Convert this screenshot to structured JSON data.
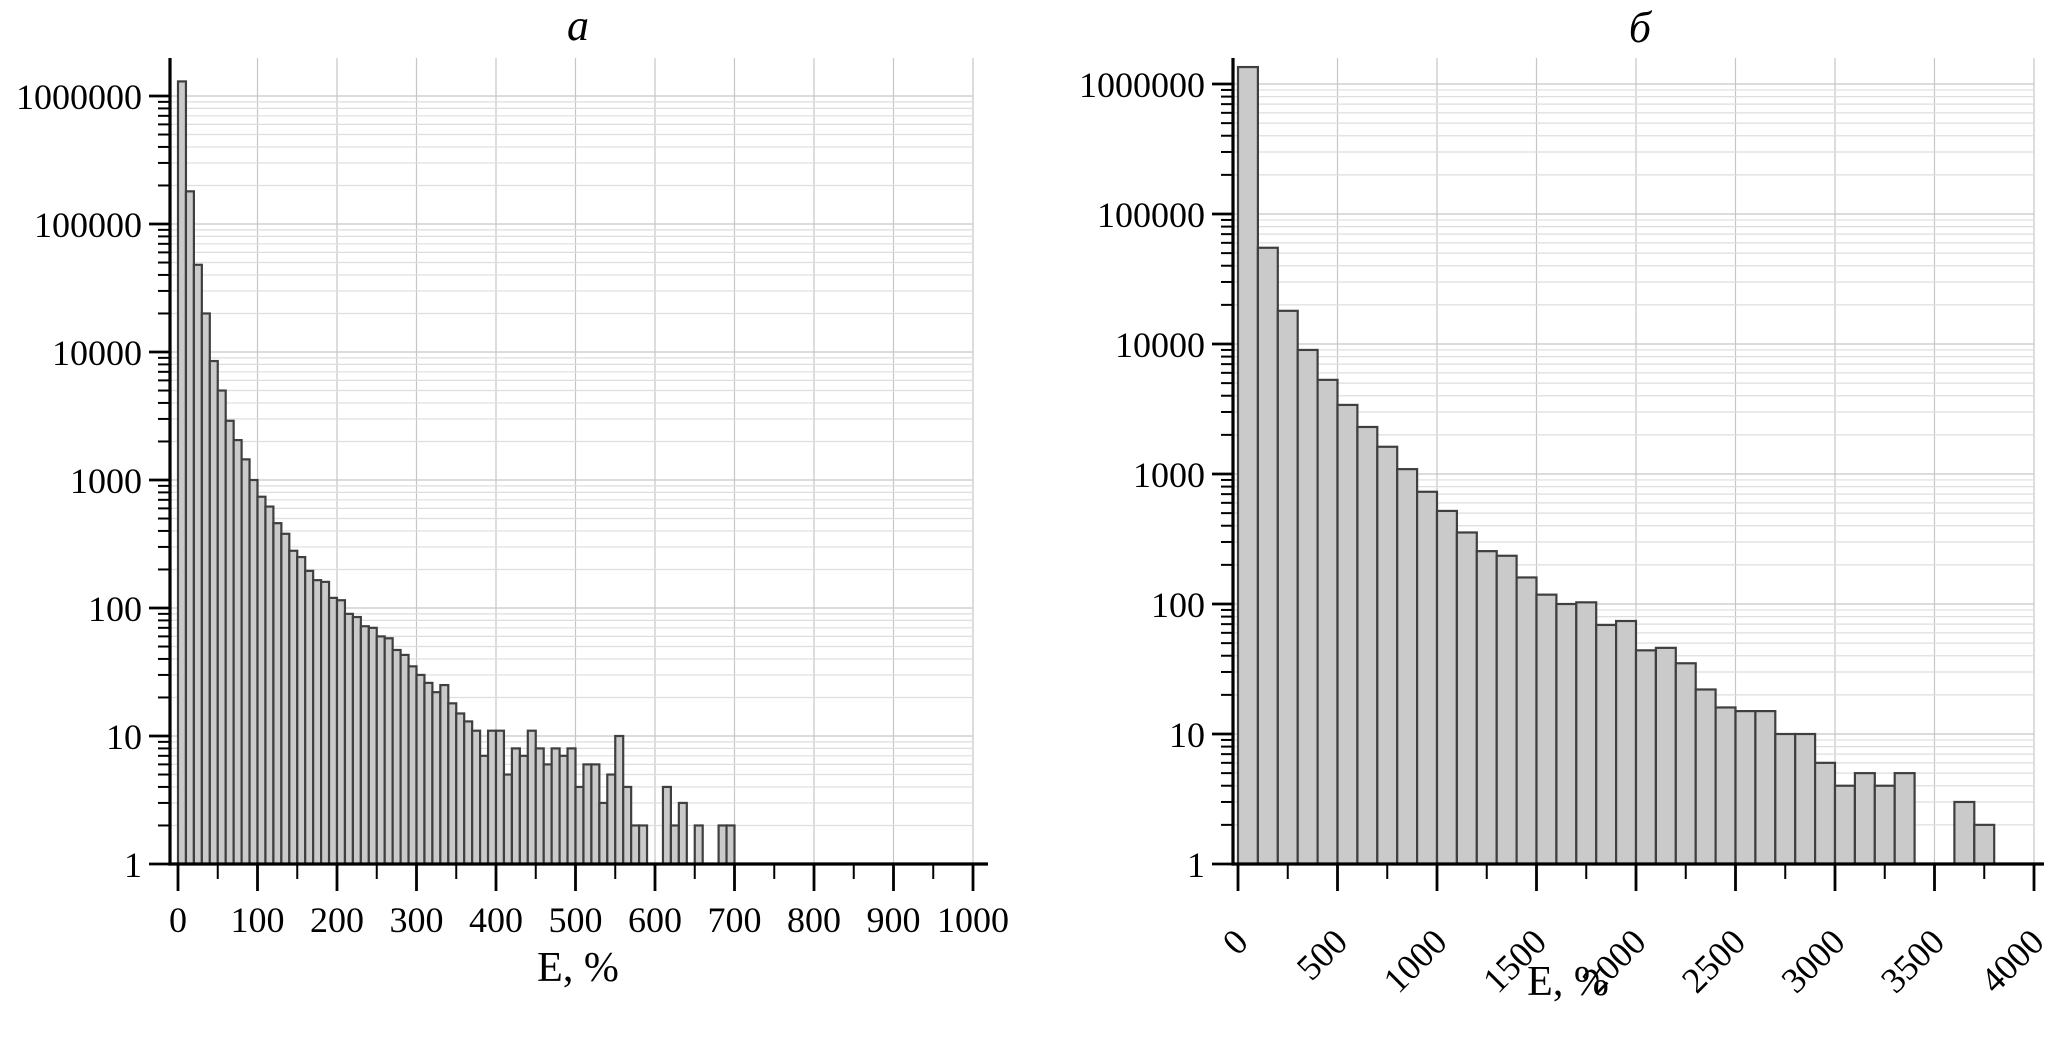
{
  "page": {
    "background": "#ffffff"
  },
  "colors": {
    "bar_fill": "#cacaca",
    "bar_stroke": "#3f3f3f",
    "grid_minor": "#dedede",
    "grid_major": "#c6c6c6",
    "axis": "#000000"
  },
  "chart_data": [
    {
      "type": "bar",
      "title": "а",
      "xlabel": "E, %",
      "x": {
        "min": 0,
        "max": 1000,
        "major_tick_step": 100,
        "minor_tick_step": 50,
        "tick_labels": [
          "0",
          "100",
          "200",
          "300",
          "400",
          "500",
          "600",
          "700",
          "800",
          "900",
          "1000"
        ],
        "rotated_labels": false
      },
      "y": {
        "scale": "log",
        "min": 1,
        "max": 1300000,
        "tick_labels": [
          "1",
          "10",
          "100",
          "1000",
          "10000",
          "100000",
          "1000000"
        ]
      },
      "grid": {
        "horizontal": "log-minor",
        "vertical_step": 100
      },
      "bins": {
        "start": 0,
        "width": 10,
        "values": [
          1300000,
          180000,
          48000,
          20000,
          8500,
          5000,
          2900,
          2050,
          1450,
          1000,
          740,
          620,
          460,
          380,
          280,
          250,
          195,
          165,
          160,
          120,
          115,
          90,
          85,
          72,
          70,
          60,
          58,
          47,
          43,
          35,
          30,
          26,
          22,
          25,
          18,
          15,
          13,
          11,
          7,
          11,
          11,
          5,
          8,
          7,
          11,
          8,
          6,
          8,
          7,
          8,
          4,
          6,
          6,
          3,
          5,
          10,
          4,
          2,
          2,
          0,
          0,
          4,
          2,
          3,
          0,
          2,
          0,
          0,
          2,
          2
        ]
      }
    },
    {
      "type": "bar",
      "title": "б",
      "xlabel": "E, %",
      "x": {
        "min": 0,
        "max": 4000,
        "major_tick_step": 500,
        "minor_tick_step": 250,
        "tick_labels": [
          "0",
          "500",
          "1000",
          "1500",
          "2000",
          "2500",
          "3000",
          "3500",
          "4000"
        ],
        "rotated_labels": true
      },
      "y": {
        "scale": "log",
        "min": 1,
        "max": 1350000,
        "tick_labels": [
          "1",
          "10",
          "100",
          "1000",
          "10000",
          "100000",
          "1000000"
        ]
      },
      "grid": {
        "horizontal": "log-minor",
        "vertical_step": 500
      },
      "bins": {
        "start": 0,
        "width": 100,
        "values": [
          1350000,
          55000,
          18000,
          9000,
          5300,
          3400,
          2300,
          1620,
          1090,
          730,
          520,
          355,
          255,
          235,
          160,
          118,
          100,
          103,
          69,
          74,
          44,
          46,
          35,
          22,
          16,
          15,
          15,
          10,
          10,
          6,
          4,
          5,
          4,
          5,
          0,
          0,
          3,
          2
        ]
      }
    }
  ]
}
